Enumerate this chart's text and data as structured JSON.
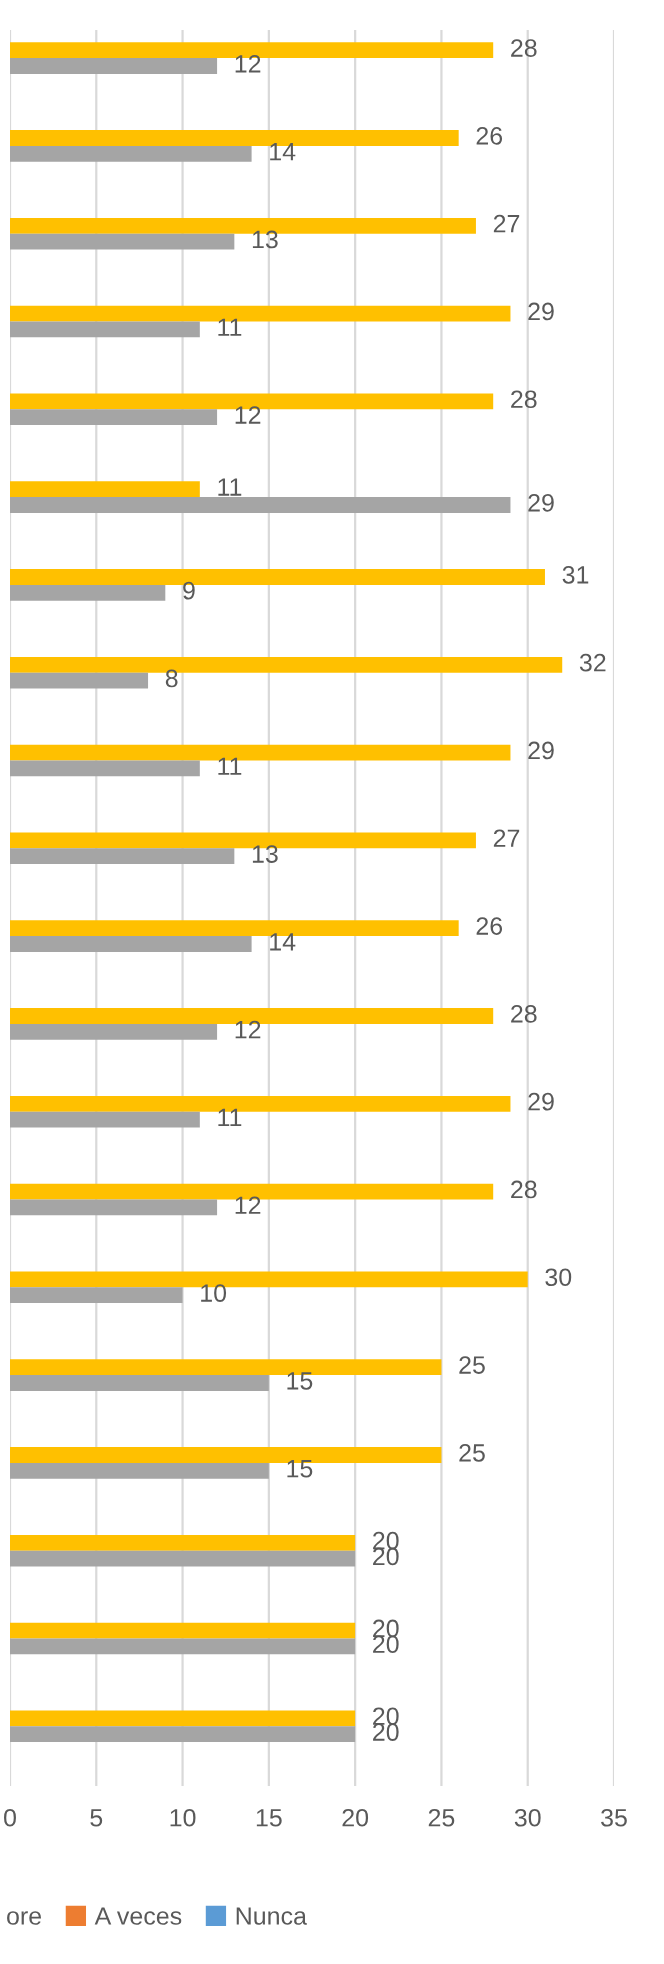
{
  "chart_data": {
    "type": "bar",
    "orientation": "horizontal",
    "categories": [
      null,
      null,
      null,
      null,
      null,
      null,
      null,
      null,
      null,
      null,
      null,
      null,
      null,
      null,
      null,
      null,
      null,
      null,
      null,
      null
    ],
    "series": [
      {
        "color": "#ffc000",
        "values": [
          28,
          26,
          27,
          29,
          28,
          11,
          31,
          32,
          29,
          27,
          26,
          28,
          29,
          28,
          30,
          25,
          25,
          20,
          20,
          20
        ]
      },
      {
        "name": "ore",
        "color": "#a5a5a5",
        "values": [
          12,
          14,
          13,
          11,
          12,
          29,
          9,
          8,
          11,
          13,
          14,
          12,
          11,
          12,
          10,
          15,
          15,
          20,
          20,
          20
        ]
      },
      {
        "name": "A veces",
        "color": "#ed7d31",
        "values": [
          null,
          null,
          null,
          null,
          null,
          null,
          null,
          null,
          null,
          null,
          null,
          null,
          null,
          null,
          null,
          null,
          null,
          null,
          null,
          null
        ]
      },
      {
        "name": "Nunca",
        "color": "#5b9bd5",
        "values": [
          null,
          null,
          null,
          null,
          null,
          null,
          null,
          null,
          null,
          null,
          null,
          null,
          null,
          null,
          null,
          null,
          null,
          null,
          null,
          null
        ]
      }
    ],
    "xlim": [
      0,
      35
    ],
    "xticks": [
      0,
      5,
      10,
      15,
      20,
      25,
      30,
      35
    ],
    "grid": "x",
    "legend": "bottom",
    "data_labels": true,
    "tick_labels": "x"
  }
}
